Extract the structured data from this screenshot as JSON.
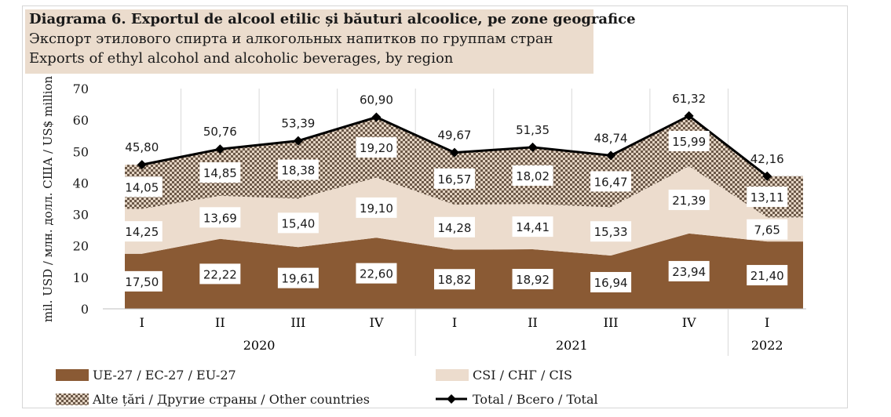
{
  "titles": {
    "ro": "Diagrama 6. Exportul de alcool etilic și băuturi alcoolice, pe zone geografice",
    "ru": "Экспорт этилового спирта и алкогольных напитков по группам стран",
    "en": "Exports of ethyl alcohol and alcoholic beverages, by region"
  },
  "chart_data": {
    "type": "area",
    "stacked": true,
    "categories": [
      "I",
      "II",
      "III",
      "IV",
      "I",
      "II",
      "III",
      "IV",
      "I"
    ],
    "year_groups": [
      {
        "label": "2020",
        "from": 0,
        "to": 3
      },
      {
        "label": "2021",
        "from": 4,
        "to": 7
      },
      {
        "label": "2022",
        "from": 8,
        "to": 8
      }
    ],
    "ylabel": "mil. USD / млн. долл. США / US$ million",
    "ylim": [
      0,
      70
    ],
    "yticks": [
      0,
      10,
      20,
      30,
      40,
      50,
      60,
      70
    ],
    "grid": "vertical",
    "legend_position": "bottom",
    "series": [
      {
        "name": "UE-27 / ЕС-27 / EU-27",
        "kind": "area",
        "color": "#8a5a34",
        "values": [
          17.5,
          22.22,
          19.61,
          22.6,
          18.82,
          18.92,
          16.94,
          23.94,
          21.4
        ]
      },
      {
        "name": "CSI / СНГ / CIS",
        "kind": "area",
        "color": "#ecdccd",
        "values": [
          14.25,
          13.69,
          15.4,
          19.1,
          14.28,
          14.41,
          15.33,
          21.39,
          7.65
        ]
      },
      {
        "name": "Alte țări / Другие страны / Other countries",
        "kind": "area-pattern",
        "color": "#7a6a5a",
        "values": [
          14.05,
          14.85,
          18.38,
          19.2,
          16.57,
          18.02,
          16.47,
          15.99,
          13.11
        ]
      },
      {
        "name": "Total / Всего / Total",
        "kind": "line",
        "color": "#000000",
        "values": [
          45.8,
          50.76,
          53.39,
          60.9,
          49.67,
          51.35,
          48.74,
          61.32,
          42.16
        ]
      }
    ]
  }
}
